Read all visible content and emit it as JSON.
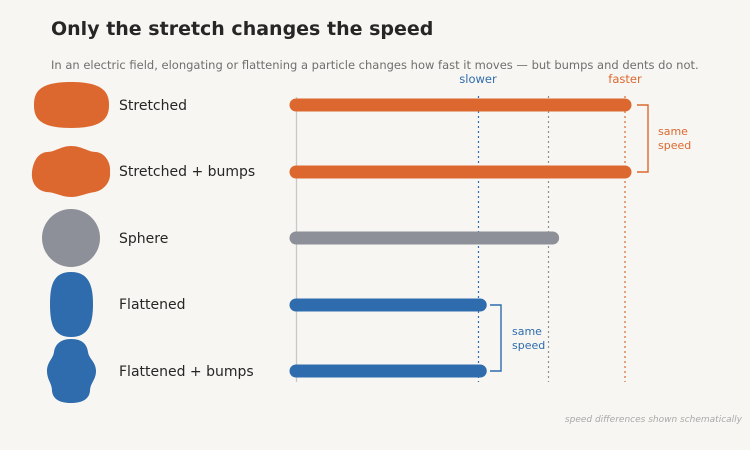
{
  "title": "Only the stretch changes the speed",
  "subtitle": "In an electric field, elongating or flattening a particle changes how fast it moves — but bumps and dents do not.",
  "footnote": "speed differences shown schematically",
  "colors": {
    "stretched": "#dc682f",
    "sphere": "#8d9098",
    "flattened": "#2f6cad",
    "axis": "#c8c8c8",
    "background": "#f7f6f2"
  },
  "reference_lines": {
    "slower": "slower",
    "faster": "faster"
  },
  "rows": [
    {
      "label": "Stretched",
      "shape": "stretched-blob",
      "speed": "faster",
      "speed_fraction": 1.0
    },
    {
      "label": "Stretched + bumps",
      "shape": "stretched-bumpy-blob",
      "speed": "faster",
      "speed_fraction": 1.0
    },
    {
      "label": "Sphere",
      "shape": "sphere",
      "speed": "baseline",
      "speed_fraction": 0.78
    },
    {
      "label": "Flattened",
      "shape": "flattened-blob",
      "speed": "slower",
      "speed_fraction": 0.56
    },
    {
      "label": "Flattened + bumps",
      "shape": "flattened-bumpy-blob",
      "speed": "slower",
      "speed_fraction": 0.56
    }
  ],
  "brackets": {
    "top": [
      "same",
      "speed"
    ],
    "bottom": [
      "same",
      "speed"
    ]
  }
}
